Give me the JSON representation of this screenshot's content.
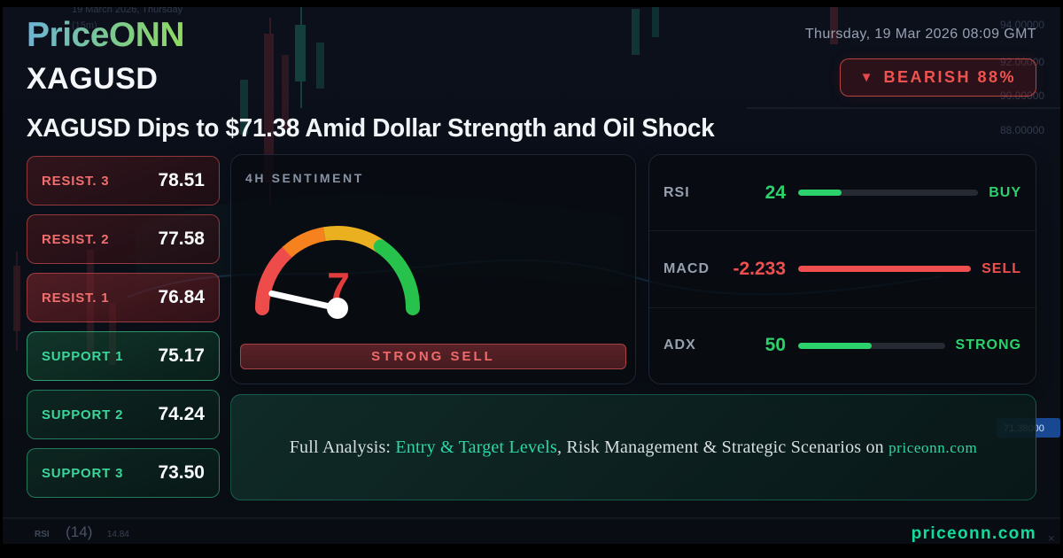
{
  "brand": {
    "logo": "PriceONN",
    "footer_domain": "priceonn.com"
  },
  "topbar": {
    "datetime": "Thursday, 19 Mar 2026 08:09 GMT"
  },
  "header": {
    "symbol": "XAGUSD",
    "badge": {
      "direction_icon": "▼",
      "label": "BEARISH 88%"
    }
  },
  "headline": "XAGUSD Dips to $71.38 Amid Dollar Strength and Oil Shock",
  "levels": [
    {
      "label": "RESIST. 3",
      "value": "78.51",
      "type": "resistance"
    },
    {
      "label": "RESIST. 2",
      "value": "77.58",
      "type": "resistance"
    },
    {
      "label": "RESIST. 1",
      "value": "76.84",
      "type": "resistance"
    },
    {
      "label": "SUPPORT 1",
      "value": "75.17",
      "type": "support"
    },
    {
      "label": "SUPPORT 2",
      "value": "74.24",
      "type": "support"
    },
    {
      "label": "SUPPORT 3",
      "value": "73.50",
      "type": "support"
    }
  ],
  "sentiment": {
    "title": "4H SENTIMENT",
    "score": 7,
    "score_label": "7",
    "verdict": "STRONG SELL",
    "gauge_colors": {
      "red": "#ee4b4b",
      "orange": "#f5821f",
      "yellow": "#eab020",
      "green": "#27c24c"
    }
  },
  "indicators": [
    {
      "name": "RSI",
      "value": "24",
      "fill_pct": 24,
      "signal": "BUY",
      "tone": "green"
    },
    {
      "name": "MACD",
      "value": "-2.233",
      "fill_pct": 100,
      "signal": "SELL",
      "tone": "red"
    },
    {
      "name": "ADX",
      "value": "50",
      "fill_pct": 50,
      "signal": "STRONG",
      "tone": "green"
    }
  ],
  "analysis": {
    "prefix": "Full Analysis: ",
    "link_text": "Entry & Target Levels",
    "middle": ", Risk Management & Strategic Scenarios on ",
    "site": "priceonn.com"
  },
  "background_chart": {
    "watermark_line1": "19 March 2026, Thursday",
    "watermark_line2": "(15m)",
    "price_scale_labels": [
      "94.00000",
      "92.00000",
      "90.00000",
      "88.00000"
    ],
    "current_price_tag": "71.38000",
    "rsi_indicator_note_label": "RSI",
    "rsi_indicator_note_period": "(14)",
    "rsi_indicator_note_value": "14.84"
  },
  "colors": {
    "bullish_green": "#2bd16b",
    "bearish_red": "#ef4f4f",
    "teal_accent": "#2cd8a7",
    "badge_red": "#ef5350",
    "panel_border": "#1d2634"
  }
}
